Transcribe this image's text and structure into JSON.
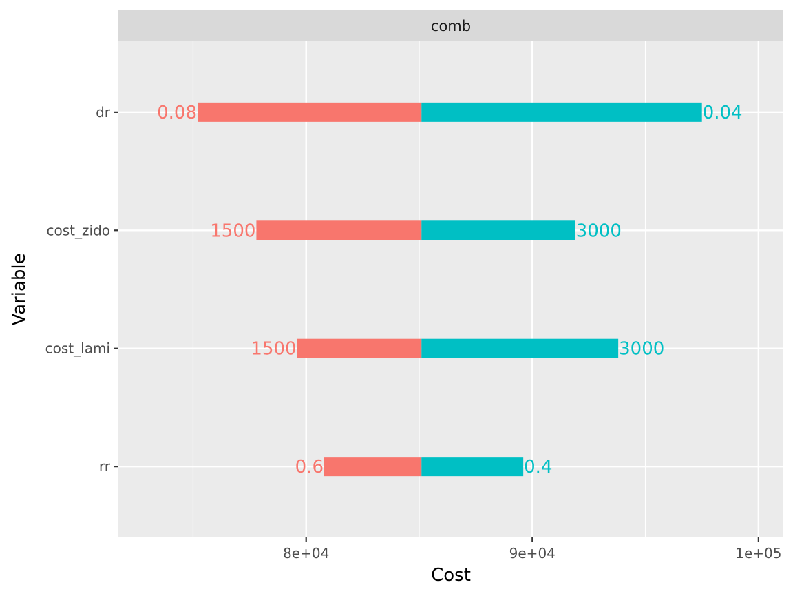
{
  "chart_data": {
    "type": "bar",
    "subtype": "tornado",
    "facet": "comb",
    "xlabel": "Cost",
    "ylabel": "Variable",
    "xlim": [
      71700,
      101100
    ],
    "base": 85100,
    "x_ticks": [
      80000,
      90000,
      100000
    ],
    "x_tick_labels": [
      "8e+04",
      "9e+04",
      "1e+05"
    ],
    "categories": [
      "dr",
      "cost_zido",
      "cost_lami",
      "rr"
    ],
    "series": [
      {
        "color": "#F8766D",
        "values": [
          75200,
          77800,
          79600,
          80800
        ],
        "labels": [
          "0.08",
          "1500",
          "1500",
          "0.6"
        ]
      },
      {
        "color": "#00BFC4",
        "values": [
          97500,
          91900,
          93800,
          89600
        ],
        "labels": [
          "0.04",
          "3000",
          "3000",
          "0.4"
        ]
      }
    ],
    "grid": true,
    "legend": "none",
    "panel_background": "#EBEBEB",
    "strip_background": "#D9D9D9"
  }
}
